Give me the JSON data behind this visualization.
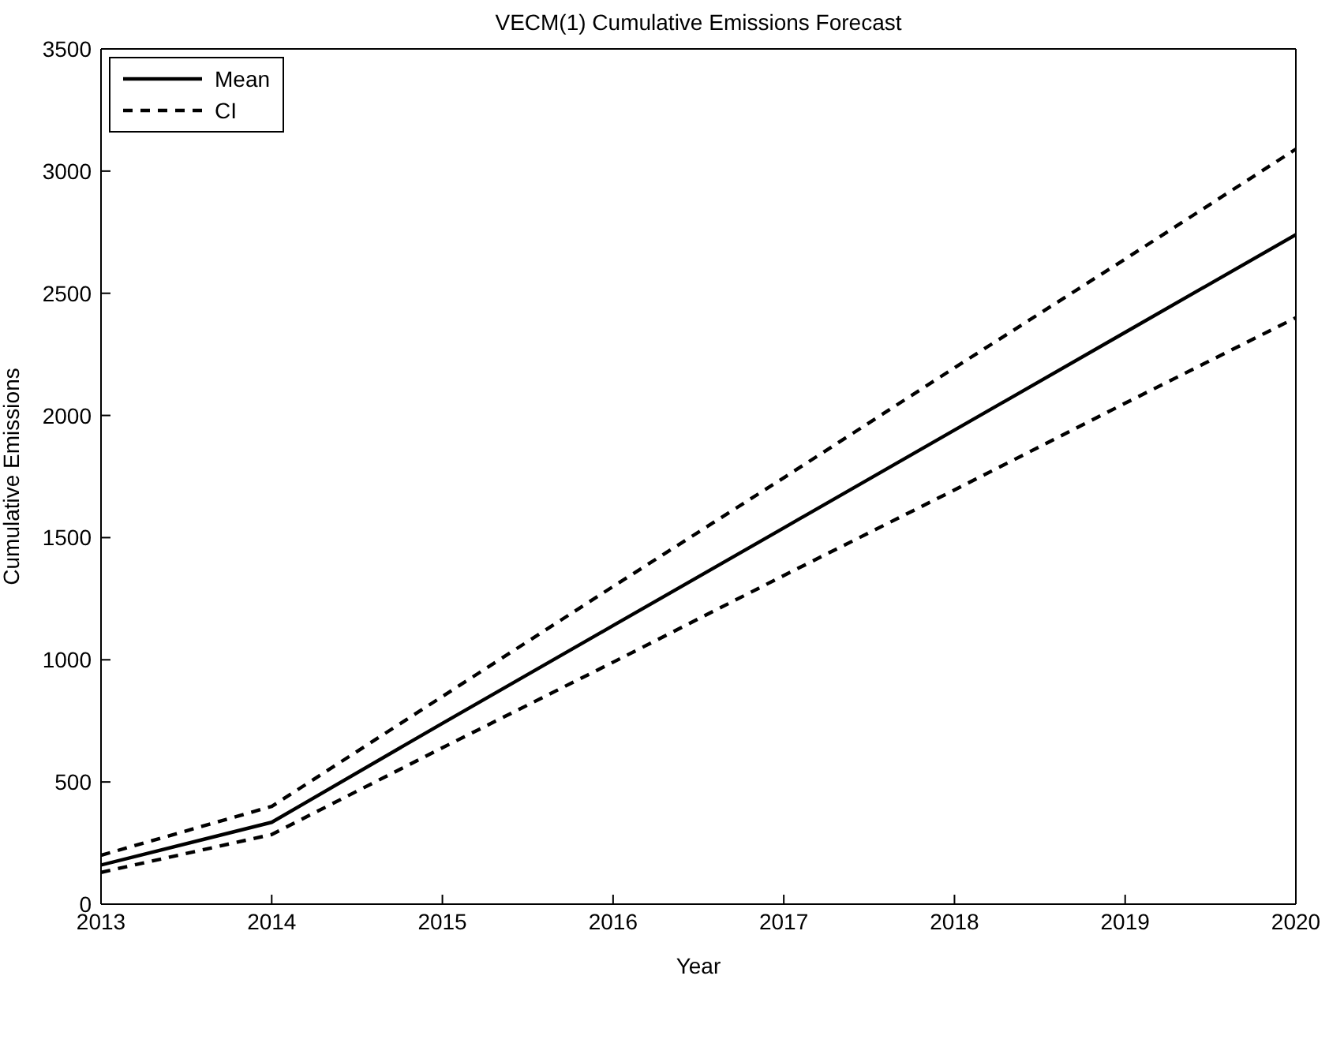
{
  "chart_data": {
    "type": "line",
    "title": "VECM(1) Cumulative Emissions Forecast",
    "xlabel": "Year",
    "ylabel": "Cumulative Emissions",
    "x": [
      2013,
      2014,
      2015,
      2016,
      2017,
      2018,
      2019,
      2020
    ],
    "series": [
      {
        "name": "Mean",
        "color": "#000000",
        "line_style": "solid",
        "values": [
          160,
          335,
          740,
          1140,
          1540,
          1940,
          2340,
          2740
        ]
      },
      {
        "name": "CI",
        "color": "#000000",
        "line_style": "dashed",
        "values": [
          200,
          400,
          850,
          1300,
          1745,
          2195,
          2640,
          3090
        ]
      },
      {
        "color": "#000000",
        "line_style": "dashed",
        "values": [
          130,
          285,
          640,
          990,
          1345,
          1695,
          2050,
          2400
        ]
      }
    ],
    "xlim": [
      2013,
      2020
    ],
    "xticks": [
      2013,
      2014,
      2015,
      2016,
      2017,
      2018,
      2019,
      2020
    ],
    "ylim": [
      0,
      3500
    ],
    "yticks": [
      0,
      500,
      1000,
      1500,
      2000,
      2500,
      3000,
      3500
    ],
    "grid": false,
    "legend": "top left",
    "marker": "none"
  }
}
